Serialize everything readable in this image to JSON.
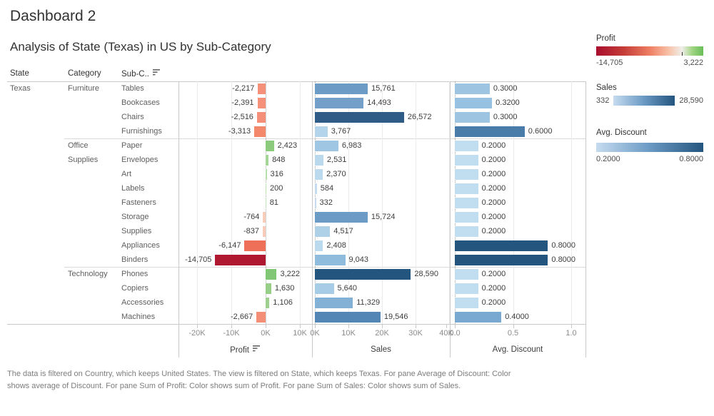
{
  "title": "Dashboard 2",
  "subtitle": "Analysis of State (Texas) in US by Sub-Category",
  "columns": {
    "state": "State",
    "category": "Category",
    "subcategory": "Sub-C.."
  },
  "chart_data": {
    "type": "bar",
    "state": "Texas",
    "groups": [
      {
        "label": "Furniture",
        "lines": [
          "Furniture"
        ],
        "start": 0,
        "count": 4
      },
      {
        "label": "Office Supplies",
        "lines": [
          "Office",
          "Supplies"
        ],
        "start": 4,
        "count": 9
      },
      {
        "label": "Technology",
        "lines": [
          "Technology"
        ],
        "start": 13,
        "count": 4
      }
    ],
    "rows": [
      {
        "subcategory": "Tables",
        "profit": -2217,
        "profit_label": "-2,217",
        "profit_color": "#F5917B",
        "sales": 15761,
        "sales_label": "15,761",
        "sales_color": "#6C9BC5",
        "discount": 0.3,
        "discount_label": "0.3000",
        "discount_color": "#9DC5E2"
      },
      {
        "subcategory": "Bookcases",
        "profit": -2391,
        "profit_label": "-2,391",
        "profit_color": "#F5907A",
        "sales": 14493,
        "sales_label": "14,493",
        "sales_color": "#739FC8",
        "discount": 0.32,
        "discount_label": "0.3200",
        "discount_color": "#97C1E0"
      },
      {
        "subcategory": "Chairs",
        "profit": -2516,
        "profit_label": "-2,516",
        "profit_color": "#F58F79",
        "sales": 26572,
        "sales_label": "26,572",
        "sales_color": "#2E5C86",
        "discount": 0.3,
        "discount_label": "0.3000",
        "discount_color": "#9DC5E2"
      },
      {
        "subcategory": "Furnishings",
        "profit": -3313,
        "profit_label": "-3,313",
        "profit_color": "#F3886D",
        "sales": 3767,
        "sales_label": "3,767",
        "sales_color": "#B3D4EA",
        "discount": 0.6,
        "discount_label": "0.6000",
        "discount_color": "#4A7CA9"
      },
      {
        "subcategory": "Paper",
        "profit": 2423,
        "profit_label": "2,423",
        "profit_color": "#8CCA7D",
        "sales": 6983,
        "sales_label": "6,983",
        "sales_color": "#9FC7E3",
        "discount": 0.2,
        "discount_label": "0.2000",
        "discount_color": "#C1DDF0"
      },
      {
        "subcategory": "Envelopes",
        "profit": 848,
        "profit_label": "848",
        "profit_color": "#A6D697",
        "sales": 2531,
        "sales_label": "2,531",
        "sales_color": "#BBD9ED",
        "discount": 0.2,
        "discount_label": "0.2000",
        "discount_color": "#C1DDF0"
      },
      {
        "subcategory": "Art",
        "profit": 316,
        "profit_label": "316",
        "profit_color": "#B7DFAB",
        "sales": 2370,
        "sales_label": "2,370",
        "sales_color": "#BCDAED",
        "discount": 0.2,
        "discount_label": "0.2000",
        "discount_color": "#C1DDF0"
      },
      {
        "subcategory": "Labels",
        "profit": 200,
        "profit_label": "200",
        "profit_color": "#BCE1B1",
        "sales": 584,
        "sales_label": "584",
        "sales_color": "#C5DBEF",
        "discount": 0.2,
        "discount_label": "0.2000",
        "discount_color": "#C1DDF0"
      },
      {
        "subcategory": "Fasteners",
        "profit": 81,
        "profit_label": "81",
        "profit_color": "#C1E3B7",
        "sales": 332,
        "sales_label": "332",
        "sales_color": "#C6DBEF",
        "discount": 0.2,
        "discount_label": "0.2000",
        "discount_color": "#C1DDF0"
      },
      {
        "subcategory": "Storage",
        "profit": -764,
        "profit_label": "-764",
        "profit_color": "#FACDBB",
        "sales": 15724,
        "sales_label": "15,724",
        "sales_color": "#6C9BC5",
        "discount": 0.2,
        "discount_label": "0.2000",
        "discount_color": "#C1DDF0"
      },
      {
        "subcategory": "Supplies",
        "profit": -837,
        "profit_label": "-837",
        "profit_color": "#FACBB9",
        "sales": 4517,
        "sales_label": "4,517",
        "sales_color": "#AED1E8",
        "discount": 0.2,
        "discount_label": "0.2000",
        "discount_color": "#C1DDF0"
      },
      {
        "subcategory": "Appliances",
        "profit": -6147,
        "profit_label": "-6,147",
        "profit_color": "#EE7058",
        "sales": 2408,
        "sales_label": "2,408",
        "sales_color": "#BCDAED",
        "discount": 0.8,
        "discount_label": "0.8000",
        "discount_color": "#24557E"
      },
      {
        "subcategory": "Binders",
        "profit": -14705,
        "profit_label": "-14,705",
        "profit_color": "#B01731",
        "sales": 9043,
        "sales_label": "9,043",
        "sales_color": "#8FBCDD",
        "discount": 0.8,
        "discount_label": "0.8000",
        "discount_color": "#24557E"
      },
      {
        "subcategory": "Phones",
        "profit": 3222,
        "profit_label": "3,222",
        "profit_color": "#82C776",
        "sales": 28590,
        "sales_label": "28,590",
        "sales_color": "#24557E",
        "discount": 0.2,
        "discount_label": "0.2000",
        "discount_color": "#C1DDF0"
      },
      {
        "subcategory": "Copiers",
        "profit": 1630,
        "profit_label": "1,630",
        "profit_color": "#97CE88",
        "sales": 5640,
        "sales_label": "5,640",
        "sales_color": "#A7CCE6",
        "discount": 0.2,
        "discount_label": "0.2000",
        "discount_color": "#C1DDF0"
      },
      {
        "subcategory": "Accessories",
        "profit": 1106,
        "profit_label": "1,106",
        "profit_color": "#9ED18F",
        "sales": 11329,
        "sales_label": "11,329",
        "sales_color": "#82B1D5",
        "discount": 0.2,
        "discount_label": "0.2000",
        "discount_color": "#C1DDF0"
      },
      {
        "subcategory": "Machines",
        "profit": -2667,
        "profit_label": "-2,667",
        "profit_color": "#F48E76",
        "sales": 19546,
        "sales_label": "19,546",
        "sales_color": "#5386B4",
        "discount": 0.4,
        "discount_label": "0.4000",
        "discount_color": "#79A9D1"
      }
    ],
    "axes": {
      "profit": {
        "title": "Profit",
        "ticks": [
          "-20K",
          "-10K",
          "0K",
          "10K"
        ]
      },
      "sales": {
        "title": "Sales",
        "ticks": [
          "0K",
          "10K",
          "20K",
          "30K",
          "40K"
        ]
      },
      "discount": {
        "title": "Avg. Discount",
        "ticks": [
          "0.0",
          "0.5",
          "1.0"
        ]
      }
    }
  },
  "legends": {
    "profit": {
      "title": "Profit",
      "min_label": "-14,705",
      "max_label": "3,222",
      "gradient": [
        [
          "#A90E2E",
          0
        ],
        [
          "#C43B38",
          25
        ],
        [
          "#EE7E63",
          50
        ],
        [
          "#F8C3AA",
          68
        ],
        [
          "#F0EDE9",
          80
        ],
        [
          "#9ED380",
          90
        ],
        [
          "#68BE58",
          100
        ]
      ],
      "zero_tick_pos": 80
    },
    "sales": {
      "title": "Sales",
      "min_label": "332",
      "max_label": "28,590",
      "gradient": [
        [
          "#C6DBEF",
          0
        ],
        [
          "#6A9AC4",
          50
        ],
        [
          "#24557E",
          100
        ]
      ]
    },
    "discount": {
      "title": "Avg. Discount",
      "min_label": "0.2000",
      "max_label": "0.8000",
      "gradient": [
        [
          "#C6DBEF",
          0
        ],
        [
          "#6A9AC4",
          50
        ],
        [
          "#24557E",
          100
        ]
      ]
    }
  },
  "footer": "The data is filtered on Country, which keeps United States. The view is filtered on State, which keeps Texas. For pane Average of Discount:  Color\nshows average of Discount.  For pane Sum of Profit:  Color shows sum of Profit.  For pane Sum of Sales:  Color shows sum of Sales."
}
